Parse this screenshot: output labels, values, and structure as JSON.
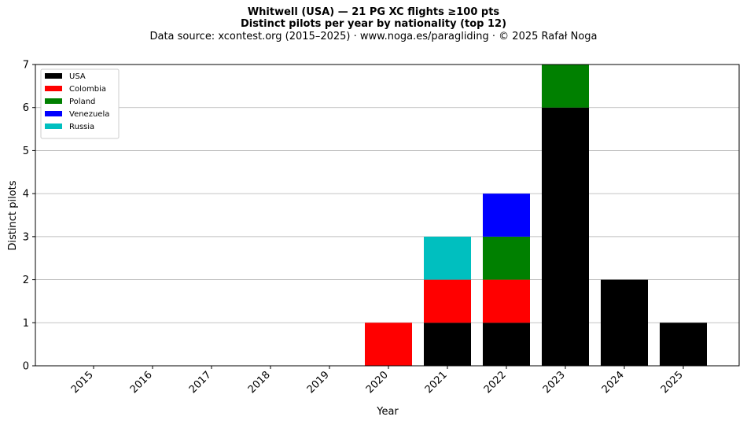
{
  "title": "Whitwell (USA)  —  21 PG XC flights ≥100 pts",
  "title2": "Distinct pilots per year by nationality (top 12)",
  "subtitle": "Data source: xcontest.org (2015–2025)  ·  www.noga.es/paragliding  ·  © 2025 Rafał Noga",
  "chart_data": {
    "type": "bar",
    "stacked": true,
    "title": "Whitwell (USA)  —  21 PG XC flights ≥100 pts",
    "subtitle": "Distinct pilots per year by nationality (top 12)",
    "xlabel": "Year",
    "ylabel": "Distinct pilots",
    "ylim": [
      0,
      7
    ],
    "yticks": [
      "0",
      "1",
      "2",
      "3",
      "4",
      "5",
      "6",
      "7"
    ],
    "grid": "horizontal",
    "legend_position": "top-left",
    "categories": [
      "2015",
      "2016",
      "2017",
      "2018",
      "2019",
      "2020",
      "2021",
      "2022",
      "2023",
      "2024",
      "2025"
    ],
    "series": [
      {
        "name": "USA",
        "color": "#000000",
        "values": [
          0,
          0,
          0,
          0,
          0,
          0,
          1,
          1,
          6,
          2,
          1
        ]
      },
      {
        "name": "Colombia",
        "color": "#ff0000",
        "values": [
          0,
          0,
          0,
          0,
          0,
          1,
          1,
          1,
          0,
          0,
          0
        ]
      },
      {
        "name": "Poland",
        "color": "#008000",
        "values": [
          0,
          0,
          0,
          0,
          0,
          0,
          0,
          1,
          1,
          0,
          0
        ]
      },
      {
        "name": "Venezuela",
        "color": "#0000ff",
        "values": [
          0,
          0,
          0,
          0,
          0,
          0,
          0,
          1,
          0,
          0,
          0
        ]
      },
      {
        "name": "Russia",
        "color": "#00bfbf",
        "values": [
          0,
          0,
          0,
          0,
          0,
          0,
          1,
          0,
          0,
          0,
          0
        ]
      }
    ]
  }
}
